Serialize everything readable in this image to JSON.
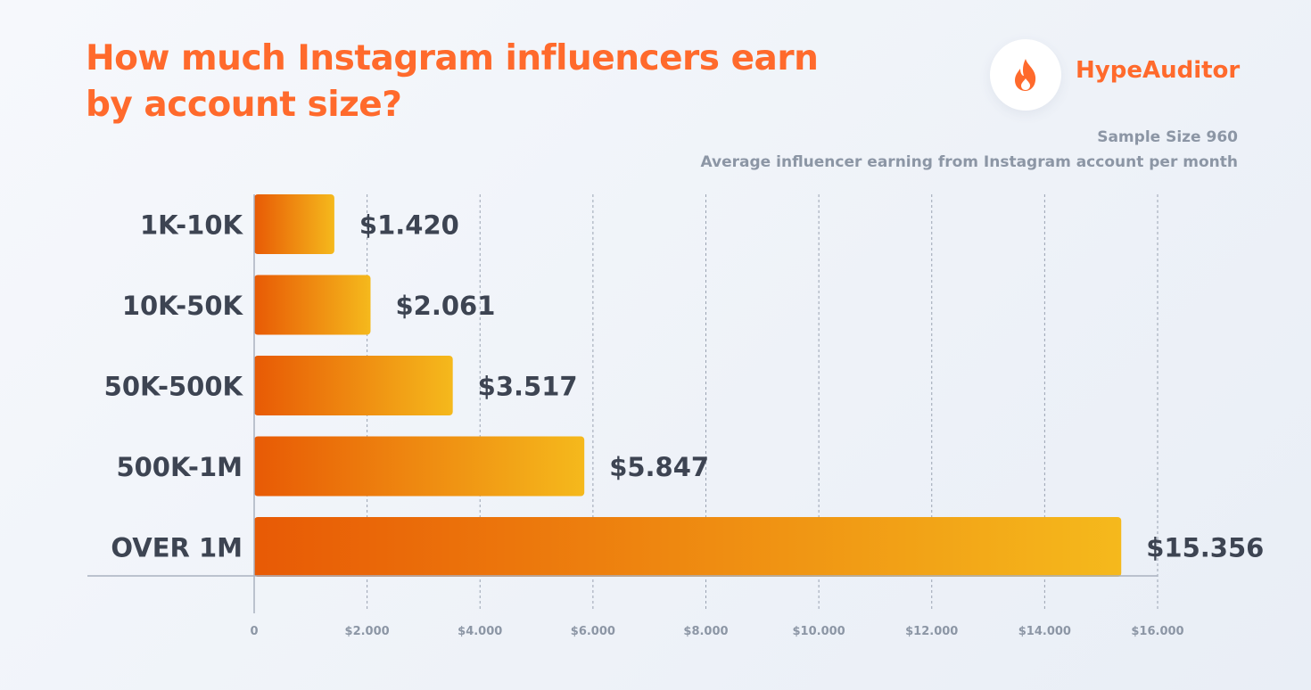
{
  "header": {
    "title_line1": "How much Instagram influencers earn",
    "title_line2": "by account size?",
    "brand": "HypeAuditor",
    "sample_size": "Sample Size 960",
    "description": "Average influencer earning from Instagram account per month",
    "brand_color": "#ff6a2c",
    "logo_icon": "flame-icon"
  },
  "chart_data": {
    "type": "bar",
    "orientation": "horizontal",
    "categories": [
      "1K-10K",
      "10K-50K",
      "50K-500K",
      "500K-1M",
      "OVER 1M"
    ],
    "values": [
      1420,
      2061,
      3517,
      5847,
      15356
    ],
    "value_labels": [
      "$1.420",
      "$2.061",
      "$3.517",
      "$5.847",
      "$15.356"
    ],
    "xlim": [
      0,
      16000
    ],
    "xticks": [
      0,
      2000,
      4000,
      6000,
      8000,
      10000,
      12000,
      14000,
      16000
    ],
    "xtick_labels": [
      "0",
      "$2.000",
      "$4.000",
      "$6.000",
      "$8.000",
      "$10.000",
      "$12.000",
      "$14.000",
      "$16.000"
    ],
    "grid": "vertical dashed",
    "bar_gradient": [
      "#e85a05",
      "#f5b91c"
    ]
  }
}
